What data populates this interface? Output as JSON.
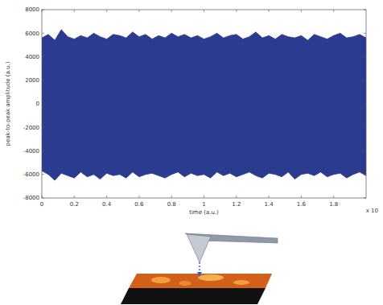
{
  "chart_data": {
    "type": "area",
    "xlabel": "time (a.u.)",
    "ylabel": "peak-to-peak amplitude (a.u.)",
    "x_note": "x 10",
    "color": "#2b3b8f",
    "grid": false,
    "x": [
      0,
      0.04,
      0.08,
      0.12,
      0.16,
      0.2,
      0.24,
      0.28,
      0.32,
      0.36,
      0.4,
      0.44,
      0.48,
      0.52,
      0.56,
      0.6,
      0.64,
      0.68,
      0.72,
      0.76,
      0.8,
      0.84,
      0.88,
      0.92,
      0.96,
      1.0,
      1.04,
      1.08,
      1.12,
      1.16,
      1.2,
      1.24,
      1.28,
      1.32,
      1.36,
      1.4,
      1.44,
      1.48,
      1.52,
      1.56,
      1.6,
      1.64,
      1.68,
      1.72,
      1.76,
      1.8,
      1.84,
      1.88,
      1.92,
      1.96,
      2.0
    ],
    "series": [
      {
        "values": [
          5600,
          5900,
          5400,
          6300,
          5700,
          5500,
          5800,
          5600,
          6000,
          5700,
          5500,
          5900,
          5800,
          5600,
          6100,
          5700,
          5900,
          5500,
          5800,
          5600,
          6000,
          5700,
          5900,
          5600,
          5800,
          5500,
          5700,
          6000,
          5600,
          5800,
          5900,
          5500,
          5700,
          6100,
          5600,
          5800,
          5500,
          5900,
          5700,
          5600,
          5800,
          5400,
          5900,
          5700,
          5500,
          5800,
          6000,
          5600,
          5700,
          5900,
          5600
        ]
      },
      {
        "values": [
          -5700,
          -6000,
          -6500,
          -5900,
          -6100,
          -6300,
          -5800,
          -6200,
          -6000,
          -6400,
          -5900,
          -6100,
          -6000,
          -6300,
          -5800,
          -6200,
          -6000,
          -5900,
          -6100,
          -6300,
          -6000,
          -5800,
          -6200,
          -5900,
          -6100,
          -6000,
          -6300,
          -5800,
          -6100,
          -5900,
          -6200,
          -6000,
          -5800,
          -6100,
          -6300,
          -5900,
          -6000,
          -6200,
          -5800,
          -6400,
          -6000,
          -5900,
          -6100,
          -5800,
          -6200,
          -6000,
          -5900,
          -6300,
          -6000,
          -5800,
          -6100
        ]
      }
    ],
    "xlim": [
      0,
      2
    ],
    "ylim": [
      -8000,
      8000
    ],
    "xticks": [
      0,
      0.2,
      0.4,
      0.6,
      0.8,
      1,
      1.2,
      1.4,
      1.6,
      1.8
    ],
    "yticks": [
      -8000,
      -6000,
      -4000,
      -2000,
      0,
      2000,
      4000,
      6000,
      8000
    ]
  }
}
